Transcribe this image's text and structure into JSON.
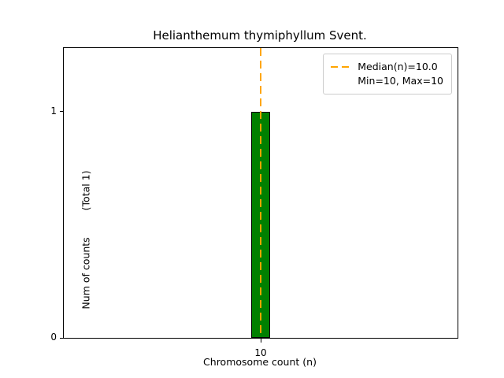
{
  "chart_data": {
    "type": "bar",
    "title": "Helianthemum thymiphyllum Svent.",
    "xlabel": "Chromosome count (n)",
    "ylabel": "Num of counts",
    "ylabel_secondary": "(Total 1)",
    "categories": [
      10
    ],
    "values": [
      1
    ],
    "ylim": [
      0,
      1.28
    ],
    "yticks": [
      0,
      1
    ],
    "xticks": [
      "10"
    ],
    "bar_color": "#008000",
    "bar_edge_color": "#000000",
    "median_line": {
      "x": 10,
      "color": "#FFA500",
      "style": "dashed"
    },
    "legend": {
      "position": "upper right",
      "entries": [
        "Median(n)=10.0",
        "Min=10, Max=10"
      ]
    },
    "total_counts": 1
  }
}
